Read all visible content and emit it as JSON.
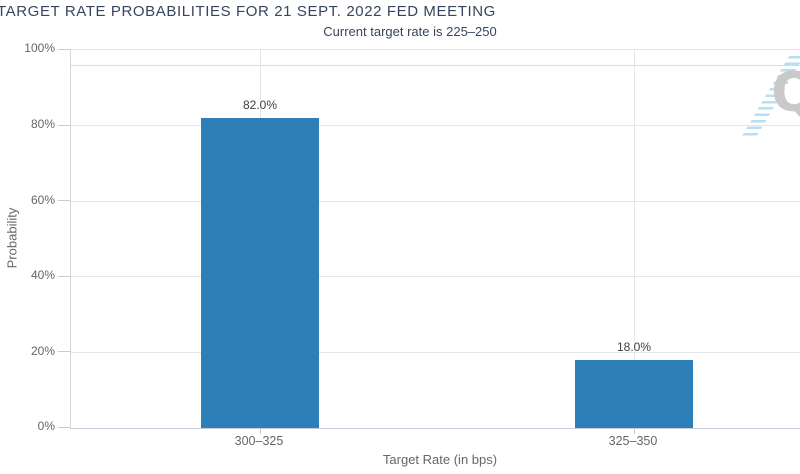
{
  "chart_data": {
    "type": "bar",
    "title": "TARGET RATE PROBABILITIES FOR 21 SEPT. 2022 FED MEETING",
    "subtitle": "Current target rate is 225–250",
    "categories": [
      "300–325",
      "325–350"
    ],
    "values": [
      82.0,
      18.0
    ],
    "value_labels": [
      "82.0%",
      "18.0%"
    ],
    "xlabel": "Target Rate (in bps)",
    "ylabel": "Probability",
    "ylim": [
      0,
      100
    ],
    "ytick_labels": [
      "0%",
      "20%",
      "40%",
      "60%",
      "80%",
      "100%"
    ],
    "grid": true,
    "legend": false,
    "bar_color": "#2d7fb8"
  },
  "watermark": {
    "letter": "Q",
    "gray": "#c9c9c9",
    "blue": "#b5e0f2"
  },
  "colors": {
    "title_text": "#36455e",
    "axis_text": "#666666",
    "gridline": "#e6e6e6",
    "bar": "#2d7fb8"
  }
}
